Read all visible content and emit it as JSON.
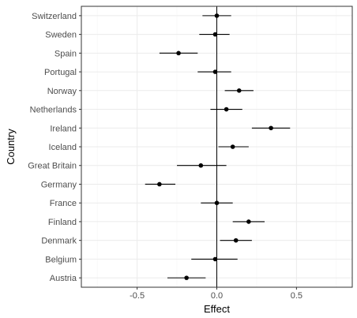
{
  "chart_data": {
    "type": "scatter",
    "variant": "forest-plot-with-error-bars",
    "xlabel": "Effect",
    "ylabel": "Country",
    "xlim": [
      -0.85,
      0.85
    ],
    "x_ticks": [
      -0.5,
      0,
      0.5
    ],
    "x_tick_labels": [
      "-0.5",
      "0.0",
      "0.5"
    ],
    "reference_line_x": 0,
    "grid": true,
    "categories": [
      "Switzerland",
      "Sweden",
      "Spain",
      "Portugal",
      "Norway",
      "Netherlands",
      "Ireland",
      "Iceland",
      "Great Britain",
      "Germany",
      "France",
      "Finland",
      "Denmark",
      "Belgium",
      "Austria"
    ],
    "estimate": [
      0.0,
      -0.01,
      -0.24,
      -0.01,
      0.14,
      0.06,
      0.34,
      0.1,
      -0.1,
      -0.36,
      0.0,
      0.2,
      0.12,
      -0.01,
      -0.19
    ],
    "lower": [
      -0.09,
      -0.11,
      -0.36,
      -0.12,
      0.05,
      -0.04,
      0.22,
      0.01,
      -0.25,
      -0.45,
      -0.1,
      0.1,
      0.02,
      -0.16,
      -0.31
    ],
    "upper": [
      0.09,
      0.08,
      -0.12,
      0.09,
      0.23,
      0.16,
      0.46,
      0.2,
      0.06,
      -0.26,
      0.1,
      0.3,
      0.22,
      0.13,
      -0.07
    ],
    "colors": {
      "point": "#000000",
      "grid_major": "#ebebeb",
      "grid_minor": "#f5f5f5",
      "panel_border": "#333333"
    }
  }
}
